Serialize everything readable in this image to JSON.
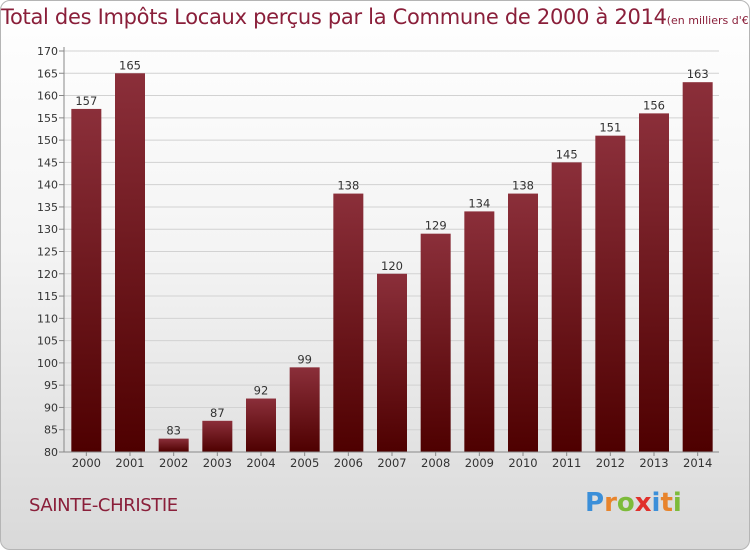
{
  "title": "Total des Impôts Locaux perçus par la Commune de 2000 à 2014",
  "title_unit": "(en milliers d'€)",
  "commune": "SAINTE-CHRISTIE",
  "logo": {
    "letters": [
      "P",
      "r",
      "o",
      "x",
      "i",
      "t",
      "i"
    ],
    "colors": [
      "#3b8fd9",
      "#e8842c",
      "#7dbb3a",
      "#e0302b",
      "#3b8fd9",
      "#e8842c",
      "#7dbb3a"
    ]
  },
  "chart_data": {
    "type": "bar",
    "categories": [
      "2000",
      "2001",
      "2002",
      "2003",
      "2004",
      "2005",
      "2006",
      "2007",
      "2008",
      "2009",
      "2010",
      "2011",
      "2012",
      "2013",
      "2014"
    ],
    "values": [
      157,
      165,
      83,
      87,
      92,
      99,
      138,
      120,
      129,
      134,
      138,
      145,
      151,
      156,
      163
    ],
    "data_labels": [
      "157",
      "165",
      "83",
      "87",
      "92",
      "99",
      "138",
      "120",
      "129",
      "134",
      "138",
      "145",
      "151",
      "156",
      "163"
    ],
    "ylim": [
      80,
      170
    ],
    "yticks": [
      "80",
      "85",
      "90",
      "95",
      "100",
      "105",
      "110",
      "115",
      "120",
      "125",
      "130",
      "135",
      "140",
      "145",
      "150",
      "155",
      "160",
      "165",
      "170"
    ],
    "grid": true,
    "bar_color_top": "#8b2f3a",
    "bar_color_bottom": "#4e0000"
  }
}
